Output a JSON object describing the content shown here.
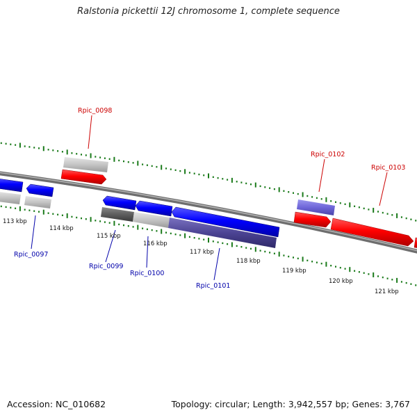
{
  "title": "Ralstonia pickettii 12J chromosome 1, complete sequence",
  "footer": {
    "accession": "Accession: NC_010682",
    "summary": "Topology: circular; Length: 3,942,557 bp; Genes: 3,767"
  },
  "colors": {
    "forward_gene": "#ff0000",
    "reverse_gene": "#0000ff",
    "forward_label": "#cc0000",
    "reverse_label": "#0000aa",
    "tick": "#1a7a1a"
  },
  "scale_labels": [
    "113 kbp",
    "114 kbp",
    "115 kbp",
    "116 kbp",
    "117 kbp",
    "118 kbp",
    "119 kbp",
    "120 kbp",
    "121 kbp"
  ],
  "gene_labels": {
    "Rpic_0097": "Rpic_0097",
    "Rpic_0098": "Rpic_0098",
    "Rpic_0099": "Rpic_0099",
    "Rpic_0100": "Rpic_0100",
    "Rpic_0101": "Rpic_0101",
    "Rpic_0102": "Rpic_0102",
    "Rpic_0103": "Rpic_0103"
  }
}
